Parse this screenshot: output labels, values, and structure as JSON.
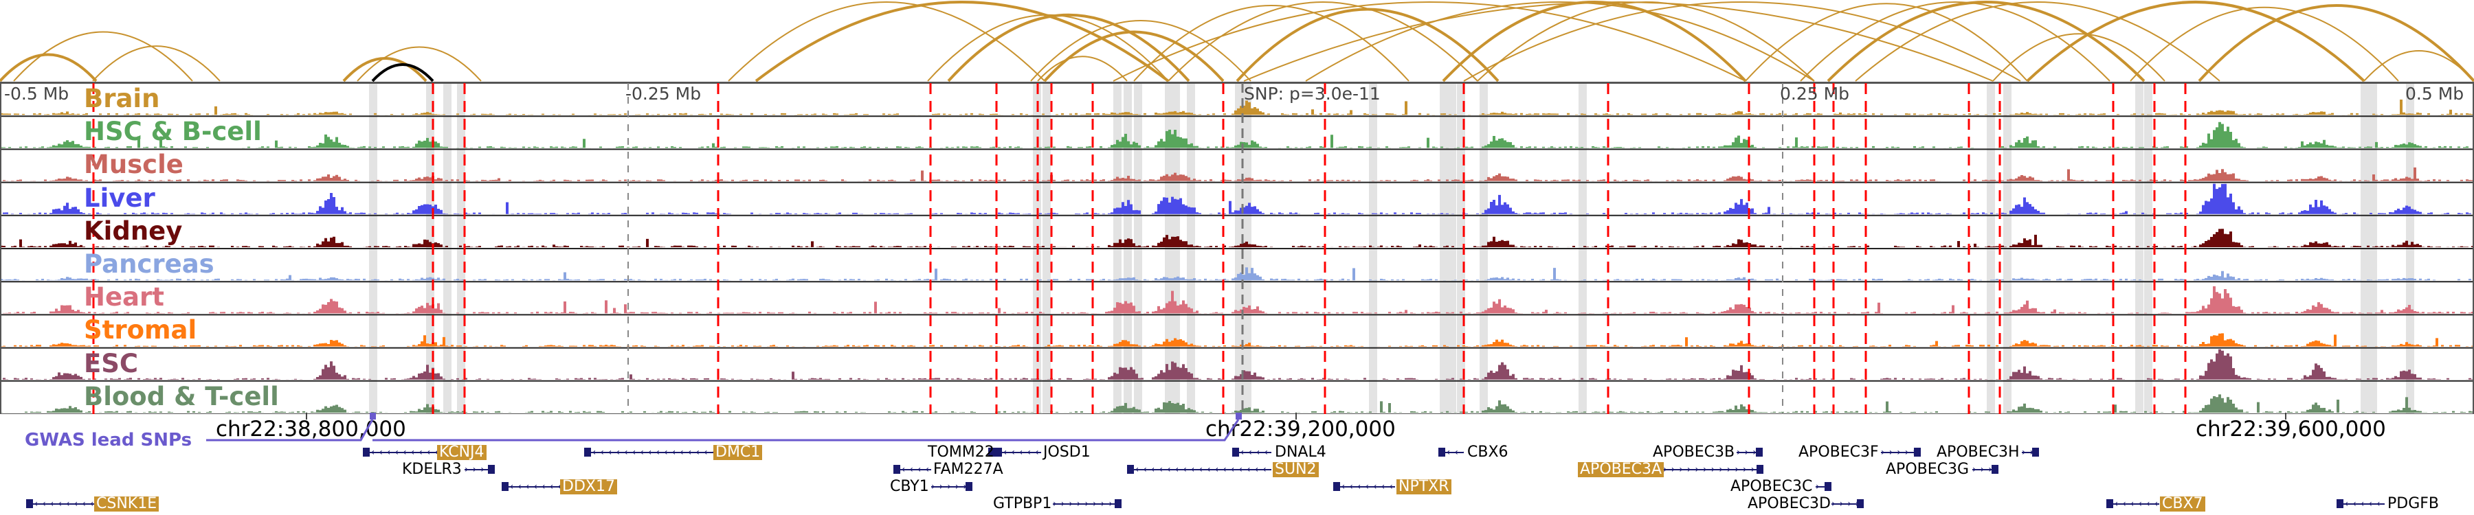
{
  "axis": {
    "left": "-0.5 Mb",
    "left_mid": "-0.25 Mb",
    "snp": "SNP: p=3.0e-11",
    "right_mid": "0.25 Mb",
    "right": "0.5 Mb"
  },
  "tracks": [
    {
      "name": "Brain",
      "color": "#c8922e"
    },
    {
      "name": "HSC & B-cell",
      "color": "#58a65c"
    },
    {
      "name": "Muscle",
      "color": "#c8665e"
    },
    {
      "name": "Liver",
      "color": "#4b4bea"
    },
    {
      "name": "Kidney",
      "color": "#6b0a0a"
    },
    {
      "name": "Pancreas",
      "color": "#8aa5e0"
    },
    {
      "name": "Heart",
      "color": "#d9707e"
    },
    {
      "name": "Stromal",
      "color": "#ff7a10"
    },
    {
      "name": "ESC",
      "color": "#8b4a66"
    },
    {
      "name": "Blood & T-cell",
      "color": "#6a8f6a"
    }
  ],
  "coords": [
    "chr22:38,800,000",
    "chr22:39,200,000",
    "chr22:39,600,000"
  ],
  "gwas_label": "GWAS lead SNPs",
  "colors": {
    "gwas": "#6a5acd",
    "gene": "#1a1a6e",
    "highlight": "#c8922e",
    "loop": "#c8922e",
    "enhancer_line": "#ff0000"
  },
  "genes": [
    {
      "name": "KCNJ4",
      "highlight": true,
      "strand": "-"
    },
    {
      "name": "DMC1",
      "highlight": true,
      "strand": "-"
    },
    {
      "name": "TOMM22",
      "highlight": false,
      "strand": "+"
    },
    {
      "name": "JOSD1",
      "highlight": false,
      "strand": "-"
    },
    {
      "name": "DNAL4",
      "highlight": false,
      "strand": "-"
    },
    {
      "name": "CBX6",
      "highlight": false,
      "strand": "-"
    },
    {
      "name": "APOBEC3B",
      "highlight": false,
      "strand": "+"
    },
    {
      "name": "APOBEC3F",
      "highlight": false,
      "strand": "+"
    },
    {
      "name": "APOBEC3H",
      "highlight": false,
      "strand": "+"
    },
    {
      "name": "KDELR3",
      "highlight": false,
      "strand": "+"
    },
    {
      "name": "FAM227A",
      "highlight": false,
      "strand": "-"
    },
    {
      "name": "SUN2",
      "highlight": true,
      "strand": "-"
    },
    {
      "name": "APOBEC3A",
      "highlight": true,
      "strand": "+"
    },
    {
      "name": "APOBEC3G",
      "highlight": false,
      "strand": "+"
    },
    {
      "name": "DDX17",
      "highlight": true,
      "strand": "-"
    },
    {
      "name": "CBY1",
      "highlight": false,
      "strand": "+"
    },
    {
      "name": "NPTXR",
      "highlight": true,
      "strand": "-"
    },
    {
      "name": "APOBEC3C",
      "highlight": false,
      "strand": "+"
    },
    {
      "name": "CSNK1E",
      "highlight": true,
      "strand": "-"
    },
    {
      "name": "GTPBP1",
      "highlight": false,
      "strand": "+"
    },
    {
      "name": "APOBEC3D",
      "highlight": false,
      "strand": "+"
    },
    {
      "name": "CBX7",
      "highlight": true,
      "strand": "-"
    },
    {
      "name": "PDGFB",
      "highlight": false,
      "strand": "-"
    }
  ]
}
